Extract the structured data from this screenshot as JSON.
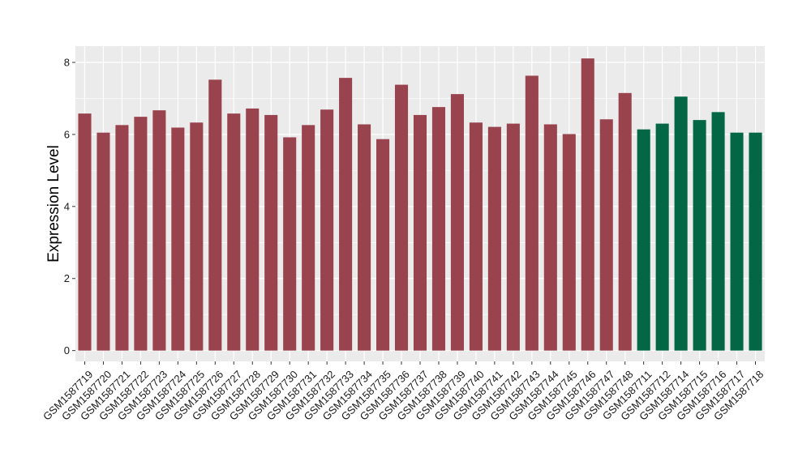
{
  "chart_data": {
    "type": "bar",
    "title": "",
    "xlabel": "",
    "ylabel": "Expression Level",
    "ylim": [
      -0.3,
      8.45
    ],
    "yticks": [
      0,
      2,
      4,
      6,
      8
    ],
    "grid": true,
    "legend": "none",
    "categories": [
      "GSM1587719",
      "GSM1587720",
      "GSM1587721",
      "GSM1587722",
      "GSM1587723",
      "GSM1587724",
      "GSM1587725",
      "GSM1587726",
      "GSM1587727",
      "GSM1587728",
      "GSM1587729",
      "GSM1587730",
      "GSM1587731",
      "GSM1587732",
      "GSM1587733",
      "GSM1587734",
      "GSM1587735",
      "GSM1587736",
      "GSM1587737",
      "GSM1587738",
      "GSM1587739",
      "GSM1587740",
      "GSM1587741",
      "GSM1587742",
      "GSM1587743",
      "GSM1587744",
      "GSM1587745",
      "GSM1587746",
      "GSM1587747",
      "GSM1587748",
      "GSM1587711",
      "GSM1587712",
      "GSM1587714",
      "GSM1587715",
      "GSM1587716",
      "GSM1587717",
      "GSM1587718"
    ],
    "values": [
      6.58,
      6.05,
      6.26,
      6.49,
      6.67,
      6.19,
      6.33,
      7.52,
      6.58,
      6.72,
      6.54,
      5.92,
      6.26,
      6.69,
      7.57,
      6.28,
      5.87,
      7.38,
      6.54,
      6.76,
      7.12,
      6.33,
      6.21,
      6.3,
      7.63,
      6.28,
      6.01,
      8.11,
      6.42,
      7.15,
      6.14,
      6.3,
      7.05,
      6.4,
      6.62,
      6.05,
      6.05
    ],
    "groups": [
      "a",
      "a",
      "a",
      "a",
      "a",
      "a",
      "a",
      "a",
      "a",
      "a",
      "a",
      "a",
      "a",
      "a",
      "a",
      "a",
      "a",
      "a",
      "a",
      "a",
      "a",
      "a",
      "a",
      "a",
      "a",
      "a",
      "a",
      "a",
      "a",
      "a",
      "b",
      "b",
      "b",
      "b",
      "b",
      "b",
      "b"
    ],
    "group_colors": {
      "a": "#99434f",
      "b": "#036644"
    },
    "panel_background": "#ebebeb",
    "grid_color": "#ffffff"
  }
}
